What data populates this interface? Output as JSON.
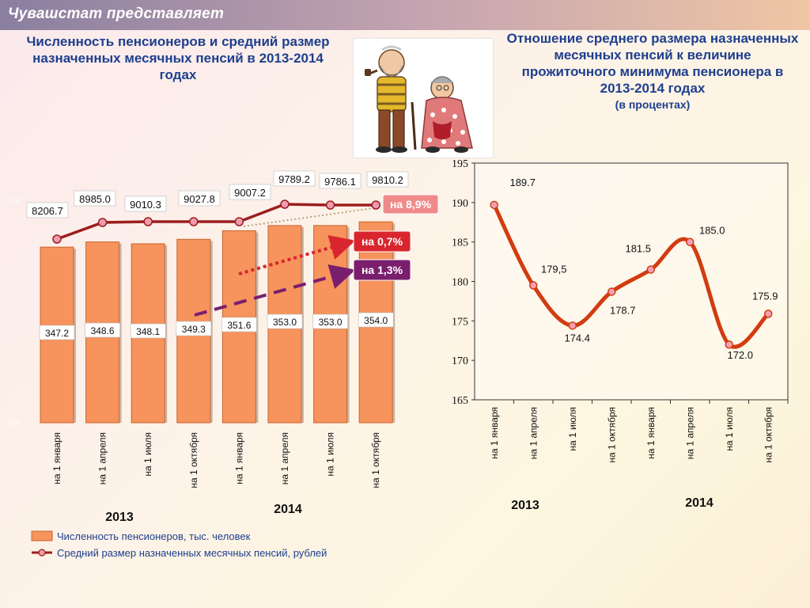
{
  "header": {
    "org": "Чувашстат представляет"
  },
  "left_title": "Численность пенсионеров и средний размер назначенных месячных пенсий в 2013-2014 годах",
  "right_title": {
    "main": "Отношение среднего размера назначенных месячных пенсий к величине прожиточного минимума пенсионера в 2013-2014 годах",
    "sub": "(в процентах)"
  },
  "chart_data": [
    {
      "type": "bar",
      "categories": [
        "на 1 января",
        "на 1 апреля",
        "на 1 июля",
        "на 1 октября",
        "на 1 января",
        "на 1 апреля",
        "на 1 июля",
        "на 1 октября"
      ],
      "year_groups": [
        {
          "label": "2013",
          "span": 4
        },
        {
          "label": "2014",
          "span": 4
        }
      ],
      "ylim": [
        300,
        360
      ],
      "y_tick_labels": [
        "300",
        "360"
      ],
      "series": [
        {
          "name": "Численность пенсионеров, тыс. человек",
          "type": "bar",
          "color": "#f7935c",
          "values": [
            347.2,
            348.6,
            348.1,
            349.3,
            351.6,
            353.0,
            353.0,
            354.0
          ],
          "value_labels": [
            "347.2",
            "348.6",
            "348.1",
            "349.3",
            "351.6",
            "353.0",
            "353.0",
            "354.0"
          ]
        },
        {
          "name": "Средний размер назначенных месячных пенсий, рублей",
          "type": "line",
          "color": "#9b1e1e",
          "values": [
            8206.7,
            8985.0,
            9010.3,
            9027.8,
            9007.2,
            9789.2,
            9786.1,
            9810.2
          ],
          "value_labels": [
            "8206.7",
            "8985.0",
            "9010.3",
            "9027.8",
            "9007.2",
            "9789.2",
            "9786.1",
            "9810.2"
          ]
        }
      ],
      "annotations": [
        {
          "text": "на 8,9%",
          "color": "#f08a8a"
        },
        {
          "text": "на 0,7%",
          "color": "#d9262e"
        },
        {
          "text": "на 1,3%",
          "color": "#7a1e6e"
        }
      ],
      "legend": "bottom-left",
      "grid": false
    },
    {
      "type": "line",
      "categories": [
        "на 1 января",
        "на 1 апреля",
        "на 1 июля",
        "на 1 октября",
        "на 1 января",
        "на 1 апреля",
        "на 1 июля",
        "на 1 октября"
      ],
      "year_groups": [
        {
          "label": "2013",
          "span": 4
        },
        {
          "label": "2014",
          "span": 4
        }
      ],
      "ylim": [
        165,
        195
      ],
      "y_ticks": [
        165,
        170,
        175,
        180,
        185,
        190,
        195
      ],
      "series": [
        {
          "type": "line",
          "color": "#d23c10",
          "values": [
            189.7,
            179.5,
            174.4,
            178.7,
            181.5,
            185.0,
            172.0,
            175.9
          ],
          "value_labels": [
            "189.7",
            "179,5",
            "174.4",
            "178.7",
            "181.5",
            "185.0",
            "172.0",
            "175.9"
          ]
        }
      ],
      "grid": false
    }
  ]
}
